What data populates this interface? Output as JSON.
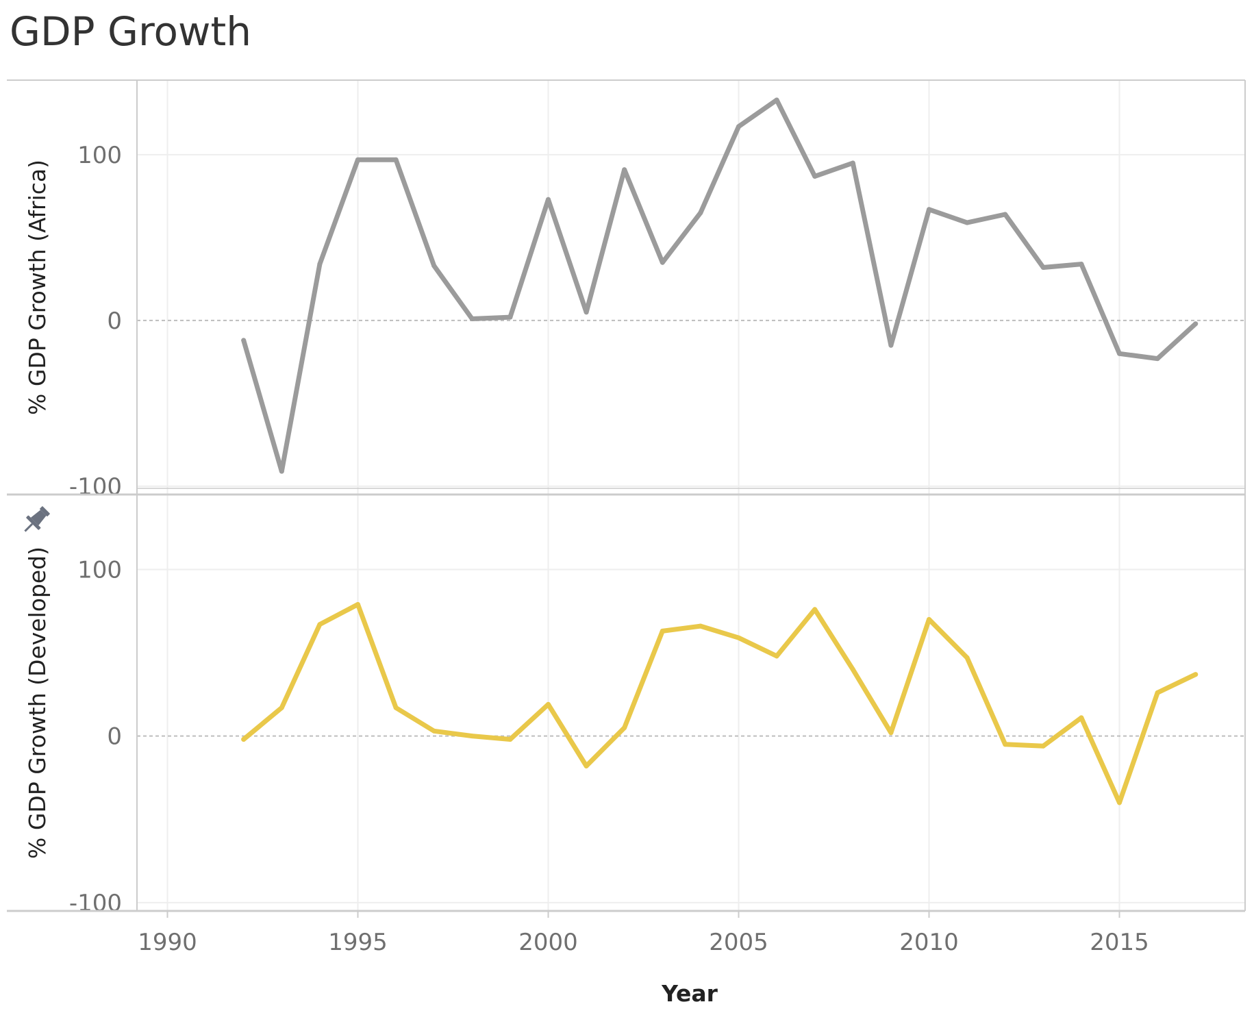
{
  "title": "GDP Growth",
  "colors": {
    "africa": "#9b9b9b",
    "developed": "#e9c84a",
    "grid": "#eeeeee",
    "frame": "#cccccc",
    "zero_line": "#bdbdbd",
    "pin_icon": "#6b7280"
  },
  "icons": {
    "pin": "pin-icon"
  },
  "chart_data": {
    "type": "line",
    "title": "GDP Growth",
    "xlabel": "Year",
    "x_ticks": [
      "1990",
      "1995",
      "2000",
      "2005",
      "2010",
      "2015"
    ],
    "xlim": [
      1989.2,
      2018.3
    ],
    "grid": true,
    "legend": "none",
    "panels": [
      {
        "ylabel": "% GDP Growth (Africa)",
        "ylim": [
          -105,
          145
        ],
        "y_ticks": [
          "100",
          "0",
          "-100"
        ],
        "pinned": false,
        "series": [
          {
            "x": [
              1992,
              1993,
              1994,
              1995,
              1996,
              1997,
              1998,
              1999,
              2000,
              2001,
              2002,
              2003,
              2004,
              2005,
              2006,
              2007,
              2008,
              2009,
              2010,
              2011,
              2012,
              2013,
              2014,
              2015,
              2016,
              2017
            ],
            "values": [
              -12,
              -91,
              34,
              97,
              97,
              33,
              1,
              2,
              73,
              5,
              91,
              35,
              65,
              117,
              133,
              87,
              95,
              -15,
              67,
              59,
              64,
              32,
              34,
              -20,
              -23,
              -2
            ]
          }
        ]
      },
      {
        "ylabel": "% GDP Growth (Developed)",
        "ylim": [
          -105,
          145
        ],
        "y_ticks": [
          "100",
          "0",
          "-100"
        ],
        "pinned": true,
        "series": [
          {
            "x": [
              1992,
              1993,
              1994,
              1995,
              1996,
              1997,
              1998,
              1999,
              2000,
              2001,
              2002,
              2003,
              2004,
              2005,
              2006,
              2007,
              2008,
              2009,
              2010,
              2011,
              2012,
              2013,
              2014,
              2015,
              2016,
              2017
            ],
            "values": [
              -2,
              17,
              67,
              79,
              17,
              3,
              0,
              -2,
              19,
              -18,
              5,
              63,
              66,
              59,
              48,
              76,
              40,
              2,
              70,
              47,
              -5,
              -6,
              11,
              -40,
              26,
              37
            ]
          }
        ]
      }
    ]
  }
}
